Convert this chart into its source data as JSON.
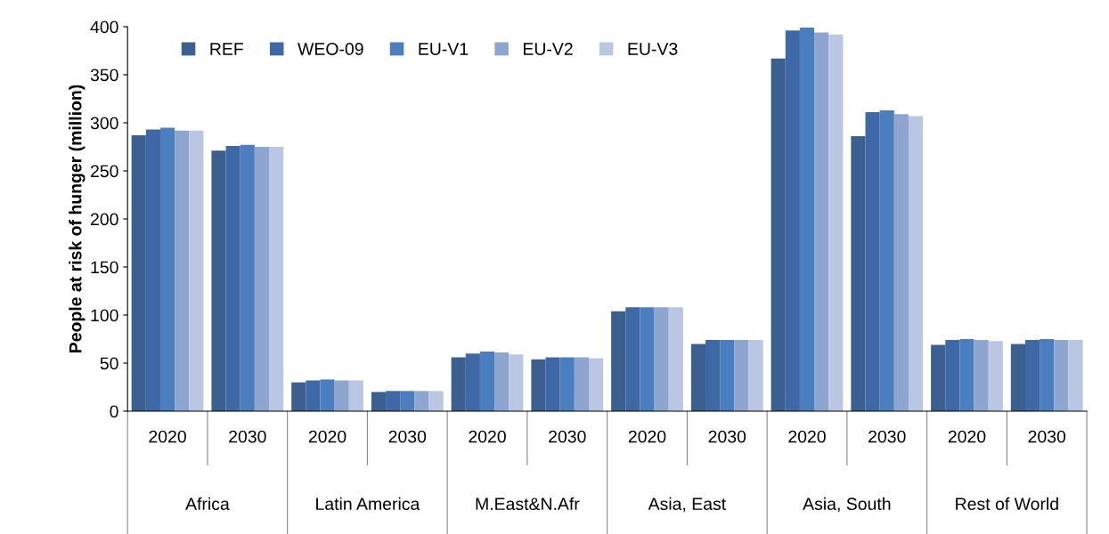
{
  "chart_data": {
    "type": "bar",
    "ylabel": "People at risk of hunger (million)",
    "categories": [
      "2020",
      "2030",
      "2020",
      "2030",
      "2020",
      "2030",
      "2020",
      "2030",
      "2020",
      "2030",
      "2020",
      "2030"
    ],
    "annotations": [
      "Africa",
      "Latin America",
      "M.East&N.Afr",
      "Asia, East",
      "Asia, South",
      "Rest of World"
    ],
    "series": [
      {
        "name": "REF",
        "color": "#3b5f8e",
        "values": [
          287,
          271,
          30,
          20,
          56,
          54,
          104,
          70,
          367,
          286,
          69,
          70
        ]
      },
      {
        "name": "WEO-09",
        "color": "#3f69a6",
        "values": [
          293,
          276,
          32,
          21,
          60,
          56,
          108,
          74,
          396,
          311,
          74,
          74
        ]
      },
      {
        "name": "EU-V1",
        "color": "#4a7ebf",
        "values": [
          295,
          277,
          33,
          21,
          62,
          56,
          108,
          74,
          399,
          313,
          75,
          75
        ]
      },
      {
        "name": "EU-V2",
        "color": "#8ea6cf",
        "values": [
          292,
          275,
          32,
          21,
          61,
          56,
          108,
          74,
          394,
          309,
          74,
          74
        ]
      },
      {
        "name": "EU-V3",
        "color": "#b9c7e3",
        "values": [
          292,
          275,
          32,
          21,
          59,
          55,
          108,
          74,
          392,
          307,
          73,
          74
        ]
      }
    ],
    "ylim": [
      0,
      400
    ],
    "yticks": [
      0,
      50,
      100,
      150,
      200,
      250,
      300,
      350,
      400
    ],
    "grid": false,
    "legend": "top left"
  }
}
